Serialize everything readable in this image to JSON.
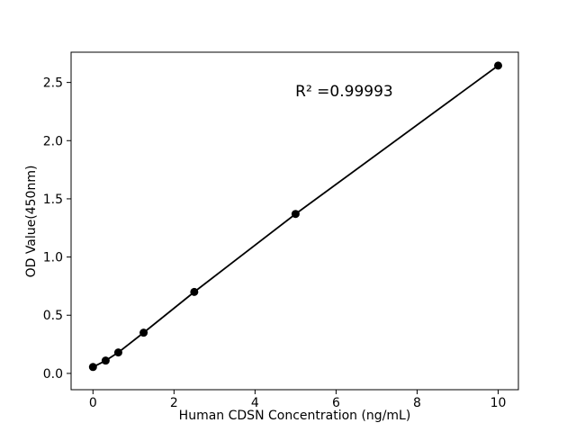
{
  "figure": {
    "background": "#ffffff",
    "text_color": "#000000"
  },
  "chart_data": {
    "type": "scatter",
    "title": "",
    "xlabel": "Human CDSN Concentration (ng/mL)",
    "ylabel": "OD Value(450nm)",
    "x": [
      0,
      0.3125,
      0.625,
      1.25,
      2.5,
      5,
      10
    ],
    "y": [
      0.055,
      0.11,
      0.18,
      0.35,
      0.7,
      1.37,
      2.645
    ],
    "x_ticks": [
      0,
      2,
      4,
      6,
      8,
      10
    ],
    "x_tick_labels": [
      "0",
      "2",
      "4",
      "6",
      "8",
      "10"
    ],
    "y_ticks": [
      0,
      0.5,
      1.0,
      1.5,
      2.0,
      2.5
    ],
    "y_tick_labels": [
      "0.0",
      "0.5",
      "1.0",
      "1.5",
      "2.0",
      "2.5"
    ],
    "xlim": [
      -0.54,
      10.5
    ],
    "ylim": [
      -0.14,
      2.76
    ],
    "grid": false,
    "legend": null,
    "line_color": "#000000",
    "marker_color": "#000000",
    "marker_radius": 4.5,
    "line_width": 1.8,
    "annotation": {
      "text": "R² =0.99993",
      "x": 6.2,
      "y": 2.42
    },
    "r_squared": 0.99993
  }
}
